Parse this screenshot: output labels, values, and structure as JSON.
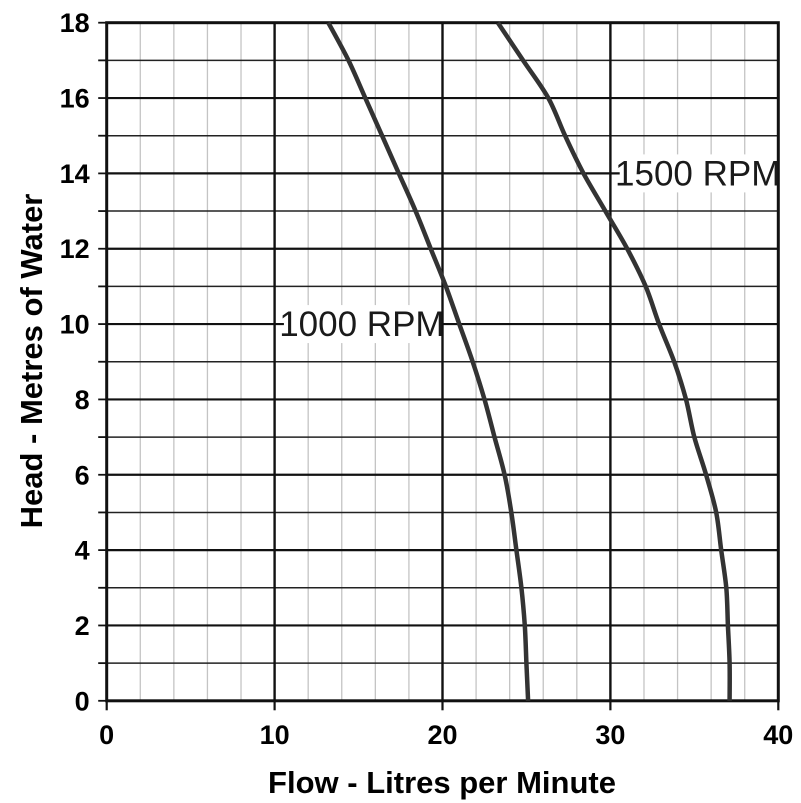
{
  "chart_data": {
    "type": "line",
    "title": "",
    "xlabel": "Flow - Litres per Minute",
    "ylabel": "Head - Metres of Water",
    "xlim": [
      0,
      40
    ],
    "ylim": [
      0,
      18
    ],
    "x_major_ticks": [
      0,
      10,
      20,
      30,
      40
    ],
    "x_minor_step": 2,
    "y_major_ticks": [
      0,
      2,
      4,
      6,
      8,
      10,
      12,
      14,
      16,
      18
    ],
    "y_minor_step": 1,
    "grid": "on",
    "legend_position": "inline-labels",
    "series": [
      {
        "name": "1000 RPM",
        "label_anchor": {
          "flow": 15.2,
          "head": 10
        },
        "points_flow_head": [
          [
            13.2,
            18
          ],
          [
            14.4,
            17
          ],
          [
            15.4,
            16
          ],
          [
            16.4,
            15
          ],
          [
            17.4,
            14
          ],
          [
            18.4,
            13
          ],
          [
            19.3,
            12
          ],
          [
            20.2,
            11
          ],
          [
            21.0,
            10
          ],
          [
            21.8,
            9
          ],
          [
            22.5,
            8
          ],
          [
            23.1,
            7
          ],
          [
            23.7,
            6
          ],
          [
            24.1,
            5
          ],
          [
            24.4,
            4
          ],
          [
            24.7,
            3
          ],
          [
            24.9,
            2
          ],
          [
            25.0,
            1
          ],
          [
            25.1,
            0
          ]
        ]
      },
      {
        "name": "1500 RPM",
        "label_anchor": {
          "flow": 35.2,
          "head": 14
        },
        "points_flow_head": [
          [
            23.3,
            18
          ],
          [
            24.8,
            17
          ],
          [
            26.3,
            16
          ],
          [
            27.3,
            15
          ],
          [
            28.4,
            14
          ],
          [
            29.7,
            13
          ],
          [
            31.0,
            12
          ],
          [
            32.1,
            11
          ],
          [
            32.9,
            10
          ],
          [
            33.8,
            9
          ],
          [
            34.5,
            8
          ],
          [
            35.0,
            7
          ],
          [
            35.7,
            6
          ],
          [
            36.3,
            5
          ],
          [
            36.6,
            4
          ],
          [
            36.9,
            3
          ],
          [
            37.0,
            2
          ],
          [
            37.1,
            1
          ],
          [
            37.1,
            0
          ]
        ]
      }
    ],
    "colors": {
      "curve": "#333333",
      "frame": "#111111",
      "grid_major": "#111111",
      "grid_minor_horizontal": "#222222",
      "grid_minor_vertical": "#c4c4c4",
      "background": "#ffffff",
      "text": "#000000"
    }
  }
}
